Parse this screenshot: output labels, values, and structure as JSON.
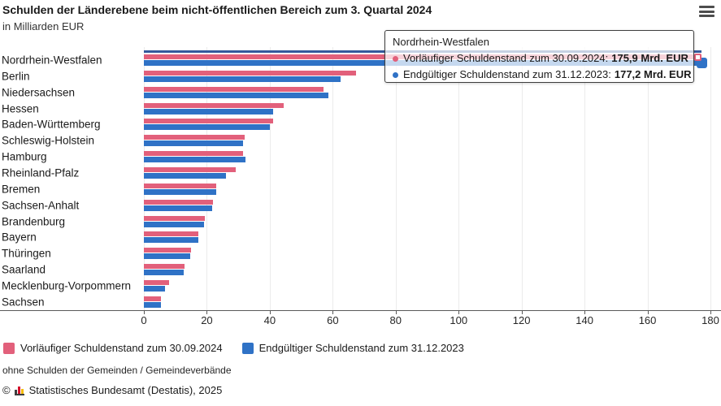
{
  "header": {
    "title": "Schulden der Länderebene beim nicht-öffentlichen Bereich zum 3. Quartal 2024",
    "subtitle": "in Milliarden EUR"
  },
  "menu": {
    "icon": "hamburger-menu-icon"
  },
  "chart_data": {
    "type": "bar",
    "orientation": "horizontal",
    "title": "Schulden der Länderebene beim nicht-öffentlichen Bereich zum 3. Quartal 2024",
    "unit_label": "in Milliarden EUR",
    "categories": [
      "Nordrhein-Westfalen",
      "Berlin",
      "Niedersachsen",
      "Hessen",
      "Baden-Württemberg",
      "Schleswig-Holstein",
      "Hamburg",
      "Rheinland-Pfalz",
      "Bremen",
      "Sachsen-Anhalt",
      "Brandenburg",
      "Bayern",
      "Thüringen",
      "Saarland",
      "Mecklenburg-Vorpommern",
      "Sachsen"
    ],
    "series": [
      {
        "name": "Vorläufiger Schuldenstand zum 30.09.2024",
        "color": "#e2607b",
        "values": [
          175.9,
          67.5,
          57.1,
          44.3,
          41.0,
          32.1,
          31.5,
          29.1,
          23.1,
          22.0,
          19.3,
          17.2,
          15.0,
          13.0,
          7.9,
          5.5
        ]
      },
      {
        "name": "Endgültiger Schuldenstand zum 31.12.2023",
        "color": "#2f72c6",
        "values": [
          177.2,
          62.4,
          58.5,
          41.0,
          39.9,
          31.5,
          32.4,
          26.2,
          23.1,
          21.8,
          19.2,
          17.2,
          14.8,
          12.7,
          6.8,
          5.3
        ]
      }
    ],
    "xlim": [
      0,
      180
    ],
    "x_ticks": [
      0,
      20,
      40,
      60,
      80,
      100,
      120,
      140,
      160,
      180
    ],
    "grid": true,
    "legend_position": "bottom"
  },
  "hover": {
    "category_index": 0,
    "strip_color": "#35599c"
  },
  "tooltip": {
    "title": "Nordrhein-Westfalen",
    "rows": [
      {
        "label": "Vorläufiger Schuldenstand zum 30.09.2024:",
        "value": "175,9 Mrd. EUR",
        "color": "#e2607b"
      },
      {
        "label": "Endgültiger Schuldenstand zum 31.12.2023:",
        "value": "177,2 Mrd. EUR",
        "color": "#2f72c6"
      }
    ]
  },
  "legend": {
    "items": [
      {
        "label": "Vorläufiger Schuldenstand zum 30.09.2024",
        "color": "#e2607b"
      },
      {
        "label": "Endgültiger Schuldenstand zum 31.12.2023",
        "color": "#2f72c6"
      }
    ]
  },
  "footnote": "ohne Schulden der Gemeinden / Gemeindeverbände",
  "copyright": {
    "symbol": "©",
    "text": "Statistisches Bundesamt (Destatis), 2025"
  }
}
